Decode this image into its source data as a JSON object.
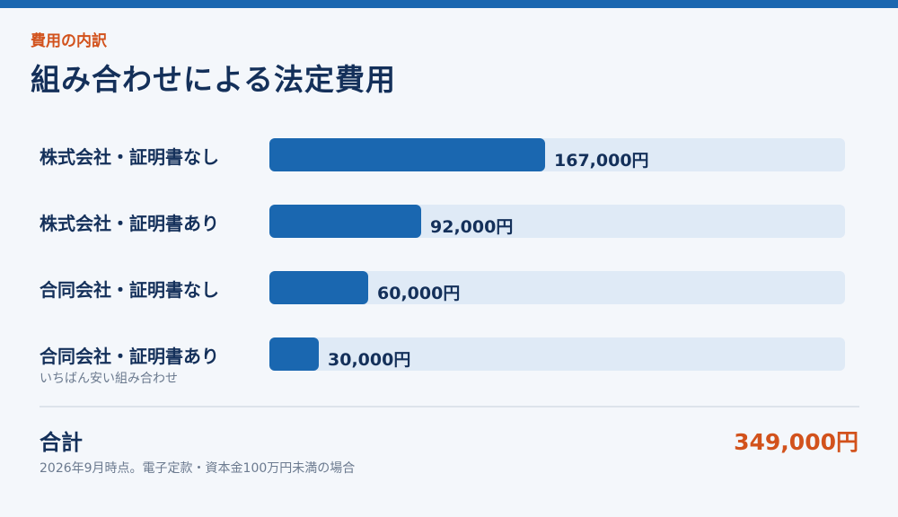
{
  "header": {
    "eyebrow": "費用の内訳",
    "title": "組み合わせによる法定費用"
  },
  "colors": {
    "accent": "#1a67b0",
    "highlight": "#d2521c",
    "track": "#dfeaf6",
    "text": "#14305a"
  },
  "chart_data": {
    "type": "bar",
    "orientation": "horizontal",
    "unit": "円",
    "xlim": [
      0,
      349000
    ],
    "categories": [
      "株式会社・証明書なし",
      "株式会社・証明書あり",
      "合同会社・証明書なし",
      "合同会社・証明書あり"
    ],
    "values": [
      167000,
      92000,
      60000,
      30000
    ],
    "value_labels": [
      "167,000円",
      "92,000円",
      "60,000円",
      "30,000円"
    ],
    "annotations": [
      {
        "category": "合同会社・証明書あり",
        "text": "いちばん安い組み合わせ"
      }
    ]
  },
  "total": {
    "label": "合計",
    "value": "349,000円"
  },
  "footnote": "2026年9月時点。電子定款・資本金100万円未満の場合"
}
